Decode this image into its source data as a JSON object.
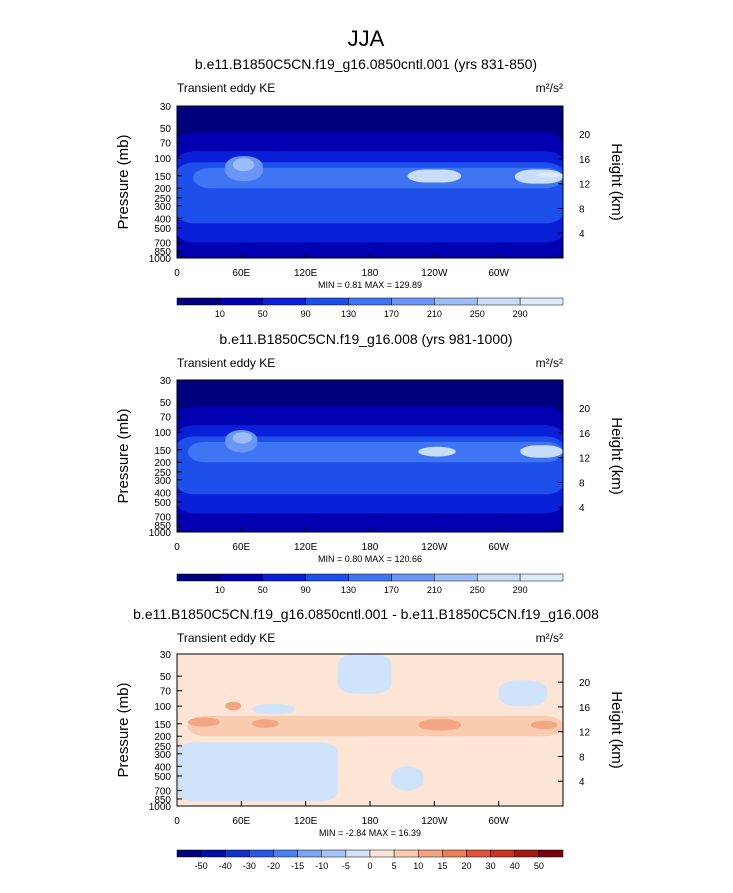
{
  "figure_title": "JJA",
  "colors": {
    "blue_ramp": [
      "#00007F",
      "#0000B0",
      "#0A1FD8",
      "#1D4FEA",
      "#3F74F2",
      "#6A97F7",
      "#9BBDF8",
      "#C8DDFA",
      "#DCEBFC"
    ],
    "diff_ramp": [
      "#00007F",
      "#0011A8",
      "#1133CC",
      "#2A58E6",
      "#4C80F2",
      "#7AA6F5",
      "#A4C6F7",
      "#CFE3FA",
      "#FCE5D4",
      "#F9CCAF",
      "#F4A582",
      "#EE7D58",
      "#E1523A",
      "#C8321F",
      "#A31A13",
      "#7A0010"
    ],
    "positive_tint": "#FCE5D4",
    "negative_tint": "#CFE3FA",
    "top_base": "#00007F"
  },
  "chart_data": [
    {
      "type": "heatmap",
      "title": "b.e11.B1850C5CN.f19_g16.0850cntl.001 (yrs 831-850)",
      "left_label": "Transient eddy KE",
      "units": "m²/s²",
      "ylabel": "Pressure (mb)",
      "ylabel_right": "Height (km)",
      "x_ticks": [
        "0",
        "60E",
        "120E",
        "180",
        "120W",
        "60W"
      ],
      "x_tick_values": [
        0,
        60,
        120,
        180,
        240,
        300
      ],
      "y_ticks": [
        "30",
        "50",
        "70",
        "100",
        "150",
        "200",
        "250",
        "300",
        "400",
        "500",
        "700",
        "850",
        "1000"
      ],
      "y_tick_values": [
        30,
        50,
        70,
        100,
        150,
        200,
        250,
        300,
        400,
        500,
        700,
        850,
        1000
      ],
      "ylim": [
        1000,
        30
      ],
      "height_ticks": [
        "4",
        "8",
        "12",
        "16",
        "20"
      ],
      "height_tick_values": [
        4,
        8,
        12,
        16,
        20
      ],
      "x_range": [
        0,
        360
      ],
      "min_max_text": "MIN =   0.81  MAX = 129.89",
      "min": 0.81,
      "max": 129.89,
      "colorbar_labels": [
        "10",
        "50",
        "90",
        "130",
        "170",
        "210",
        "250",
        "290"
      ],
      "field": [
        {
          "level": 1,
          "lon": [
            0,
            360
          ],
          "p_top": 55,
          "p_bot": 1000
        },
        {
          "level": 2,
          "lon": [
            0,
            360
          ],
          "p_top": 85,
          "p_bot": 700
        },
        {
          "level": 3,
          "lon": [
            0,
            360
          ],
          "p_top": 110,
          "p_bot": 450
        },
        {
          "level": 4,
          "lon": [
            15,
            360
          ],
          "p_top": 125,
          "p_bot": 200
        },
        {
          "level": 5,
          "lon": [
            45,
            80
          ],
          "p_top": 95,
          "p_bot": 170
        },
        {
          "level": 6,
          "lon": [
            52,
            72
          ],
          "p_top": 100,
          "p_bot": 135
        },
        {
          "level": 7,
          "lon": [
            215,
            265
          ],
          "p_top": 130,
          "p_bot": 175
        },
        {
          "level": 7,
          "lon": [
            315,
            360
          ],
          "p_top": 130,
          "p_bot": 180
        },
        {
          "level": 8,
          "lon": [
            335,
            360
          ],
          "p_top": 140,
          "p_bot": 155
        }
      ]
    },
    {
      "type": "heatmap",
      "title": "b.e11.B1850C5CN.f19_g16.008 (yrs 981-1000)",
      "left_label": "Transient eddy KE",
      "units": "m²/s²",
      "ylabel": "Pressure (mb)",
      "ylabel_right": "Height (km)",
      "x_ticks": [
        "0",
        "60E",
        "120E",
        "180",
        "120W",
        "60W"
      ],
      "x_tick_values": [
        0,
        60,
        120,
        180,
        240,
        300
      ],
      "y_ticks": [
        "30",
        "50",
        "70",
        "100",
        "150",
        "200",
        "250",
        "300",
        "400",
        "500",
        "700",
        "850",
        "1000"
      ],
      "y_tick_values": [
        30,
        50,
        70,
        100,
        150,
        200,
        250,
        300,
        400,
        500,
        700,
        850,
        1000
      ],
      "ylim": [
        1000,
        30
      ],
      "height_ticks": [
        "4",
        "8",
        "12",
        "16",
        "20"
      ],
      "height_tick_values": [
        4,
        8,
        12,
        16,
        20
      ],
      "x_range": [
        0,
        360
      ],
      "min_max_text": "MIN =   0.80  MAX = 120.66",
      "min": 0.8,
      "max": 120.66,
      "colorbar_labels": [
        "10",
        "50",
        "90",
        "130",
        "170",
        "210",
        "250",
        "290"
      ],
      "field": [
        {
          "level": 1,
          "lon": [
            0,
            360
          ],
          "p_top": 55,
          "p_bot": 1000
        },
        {
          "level": 2,
          "lon": [
            0,
            360
          ],
          "p_top": 85,
          "p_bot": 650
        },
        {
          "level": 3,
          "lon": [
            0,
            360
          ],
          "p_top": 110,
          "p_bot": 420
        },
        {
          "level": 4,
          "lon": [
            10,
            360
          ],
          "p_top": 125,
          "p_bot": 200
        },
        {
          "level": 5,
          "lon": [
            45,
            75
          ],
          "p_top": 95,
          "p_bot": 160
        },
        {
          "level": 6,
          "lon": [
            52,
            70
          ],
          "p_top": 100,
          "p_bot": 130
        },
        {
          "level": 7,
          "lon": [
            225,
            260
          ],
          "p_top": 140,
          "p_bot": 175
        },
        {
          "level": 7,
          "lon": [
            320,
            360
          ],
          "p_top": 135,
          "p_bot": 180
        }
      ]
    },
    {
      "type": "heatmap",
      "title": "b.e11.B1850C5CN.f19_g16.0850cntl.001 - b.e11.B1850C5CN.f19_g16.008",
      "left_label": "Transient eddy KE",
      "units": "m²/s²",
      "ylabel": "Pressure (mb)",
      "ylabel_right": "Height (km)",
      "x_ticks": [
        "0",
        "60E",
        "120E",
        "180",
        "120W",
        "60W"
      ],
      "x_tick_values": [
        0,
        60,
        120,
        180,
        240,
        300
      ],
      "y_ticks": [
        "30",
        "50",
        "70",
        "100",
        "150",
        "200",
        "250",
        "300",
        "400",
        "500",
        "700",
        "850",
        "1000"
      ],
      "y_tick_values": [
        30,
        50,
        70,
        100,
        150,
        200,
        250,
        300,
        400,
        500,
        700,
        850,
        1000
      ],
      "ylim": [
        1000,
        30
      ],
      "height_ticks": [
        "4",
        "8",
        "12",
        "16",
        "20"
      ],
      "height_tick_values": [
        4,
        8,
        12,
        16,
        20
      ],
      "x_range": [
        0,
        360
      ],
      "min_max_text": "MIN =  -2.84  MAX =  16.39",
      "min": -2.84,
      "max": 16.39,
      "colorbar_labels": [
        "-50",
        "-40",
        "-30",
        "-20",
        "-15",
        "-10",
        "-5",
        "0",
        "5",
        "10",
        "15",
        "20",
        "30",
        "40",
        "50"
      ],
      "field": [
        {
          "level": 7,
          "lon": [
            150,
            200
          ],
          "p_top": 30,
          "p_bot": 75
        },
        {
          "level": 7,
          "lon": [
            300,
            345
          ],
          "p_top": 55,
          "p_bot": 100
        },
        {
          "level": 7,
          "lon": [
            70,
            110
          ],
          "p_top": 95,
          "p_bot": 120
        },
        {
          "level": 7,
          "lon": [
            0,
            150
          ],
          "p_top": 230,
          "p_bot": 900
        },
        {
          "level": 7,
          "lon": [
            200,
            230
          ],
          "p_top": 400,
          "p_bot": 700
        },
        {
          "level": 9,
          "lon": [
            10,
            360
          ],
          "p_top": 125,
          "p_bot": 200
        },
        {
          "level": 10,
          "lon": [
            10,
            40
          ],
          "p_top": 130,
          "p_bot": 160
        },
        {
          "level": 10,
          "lon": [
            45,
            60
          ],
          "p_top": 90,
          "p_bot": 110
        },
        {
          "level": 10,
          "lon": [
            70,
            95
          ],
          "p_top": 135,
          "p_bot": 165
        },
        {
          "level": 10,
          "lon": [
            225,
            265
          ],
          "p_top": 135,
          "p_bot": 175
        },
        {
          "level": 10,
          "lon": [
            330,
            355
          ],
          "p_top": 140,
          "p_bot": 170
        }
      ]
    }
  ]
}
